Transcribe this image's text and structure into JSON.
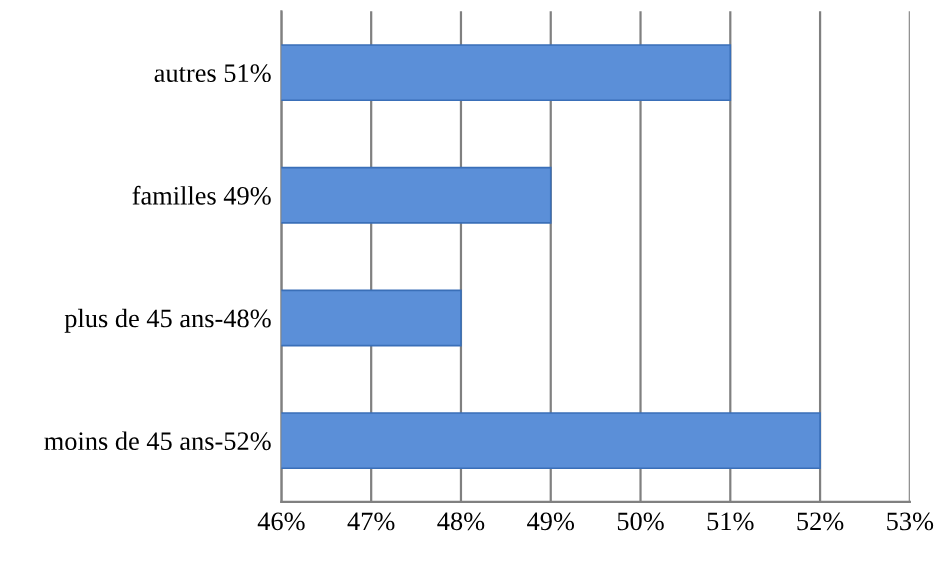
{
  "chart_data": {
    "type": "bar",
    "orientation": "horizontal",
    "categories": [
      "autres 51%",
      "familles 49%",
      "plus de 45 ans-48%",
      "moins de 45 ans-52%"
    ],
    "values": [
      51,
      49,
      48,
      52
    ],
    "color": "#5b8fd8",
    "xlim": [
      46,
      53
    ],
    "xticks": [
      {
        "value": 46,
        "label": "46%"
      },
      {
        "value": 47,
        "label": "47%"
      },
      {
        "value": 48,
        "label": "48%"
      },
      {
        "value": 49,
        "label": "49%"
      },
      {
        "value": 50,
        "label": "50%"
      },
      {
        "value": 51,
        "label": "51%"
      },
      {
        "value": 52,
        "label": "52%"
      },
      {
        "value": 53,
        "label": "53%"
      }
    ],
    "grid": "x"
  }
}
